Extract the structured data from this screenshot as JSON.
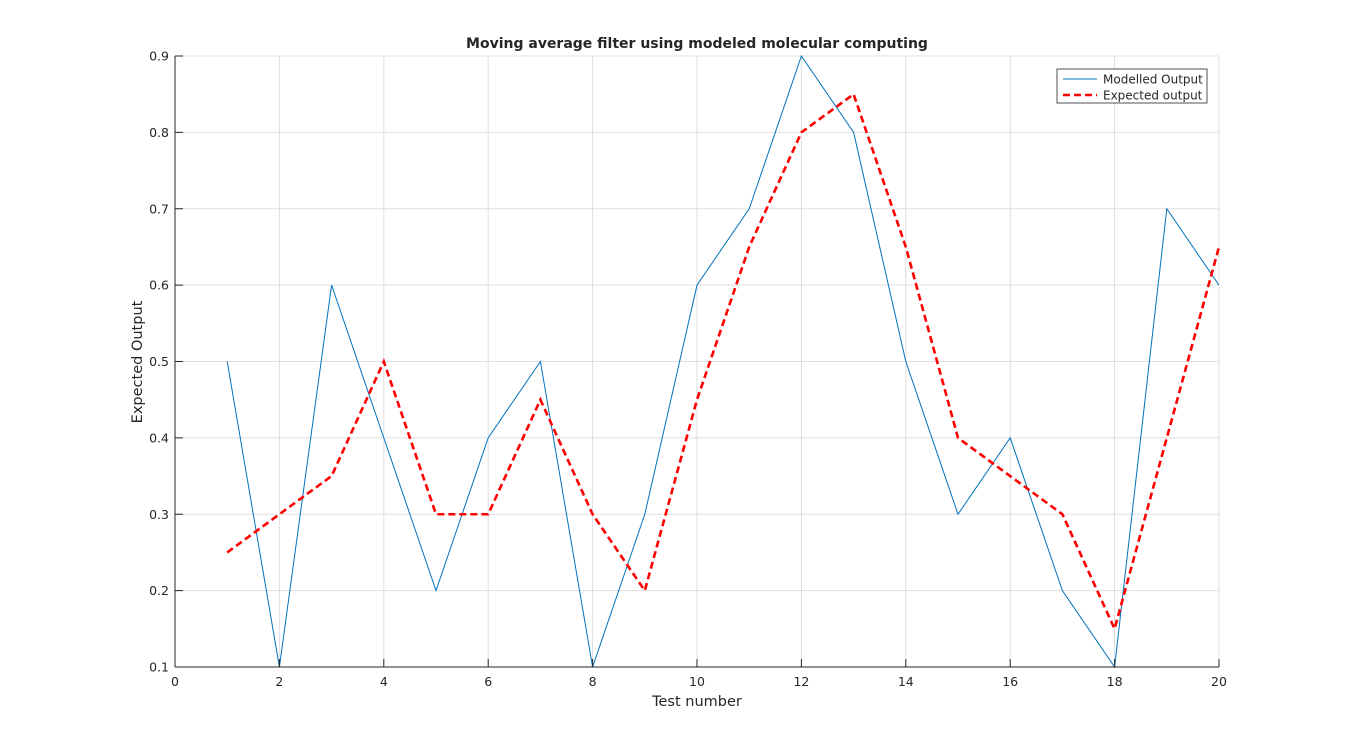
{
  "chart_data": {
    "type": "line",
    "title": "Moving average filter using modeled molecular computing",
    "xlabel": "Test number",
    "ylabel": "Expected Output",
    "xlim": [
      0,
      20
    ],
    "ylim": [
      0.1,
      0.9
    ],
    "xticks": [
      0,
      2,
      4,
      6,
      8,
      10,
      12,
      14,
      16,
      18,
      20
    ],
    "yticks": [
      0.1,
      0.2,
      0.3,
      0.4,
      0.5,
      0.6,
      0.7,
      0.8,
      0.9
    ],
    "grid": true,
    "legend_position": "top-right",
    "series": [
      {
        "name": "Modelled Output",
        "color": "#0072BD",
        "style": "solid",
        "x": [
          1,
          2,
          3,
          4,
          5,
          6,
          7,
          8,
          9,
          10,
          11,
          12,
          13,
          14,
          15,
          16,
          17,
          18,
          19,
          20
        ],
        "values": [
          0.5,
          0.1,
          0.6,
          0.4,
          0.2,
          0.4,
          0.5,
          0.1,
          0.3,
          0.6,
          0.7,
          0.9,
          0.8,
          0.5,
          0.3,
          0.4,
          0.2,
          0.1,
          0.7,
          0.6
        ]
      },
      {
        "name": "Expected output",
        "color": "#FF0000",
        "style": "dashed",
        "x": [
          1,
          2,
          3,
          4,
          5,
          6,
          7,
          8,
          9,
          10,
          11,
          12,
          13,
          14,
          15,
          16,
          17,
          18,
          19,
          20
        ],
        "values": [
          0.25,
          0.3,
          0.35,
          0.5,
          0.3,
          0.3,
          0.45,
          0.3,
          0.2,
          0.45,
          0.65,
          0.8,
          0.85,
          0.65,
          0.4,
          0.35,
          0.3,
          0.15,
          0.4,
          0.65
        ]
      }
    ]
  }
}
